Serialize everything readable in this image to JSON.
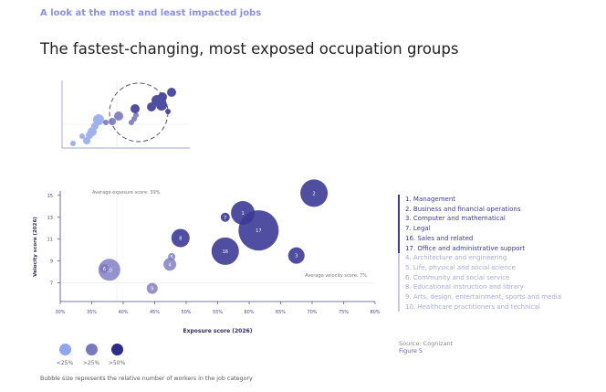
{
  "kicker": "A look at the most and least impacted jobs",
  "title": "The fastest-changing, most exposed occupation groups",
  "colors": {
    "high": "#3d3b96",
    "mid": "#7b77c0",
    "low": "#8fa5ee",
    "axis": "#4a4a8a"
  },
  "chart_data": {
    "type": "scatter",
    "subtype": "bubble",
    "xlabel": "Exposure  score (2026)",
    "ylabel": "Velocity score (2026)",
    "xlim": [
      30,
      80
    ],
    "ylim": [
      5.3,
      15.4
    ],
    "xticks": [
      "30%",
      "35%",
      "40%",
      "45%",
      "50%",
      "55%",
      "60%",
      "65%",
      "70%",
      "75%",
      "80%"
    ],
    "yticks": [
      "7",
      "9",
      "11",
      "13",
      "15"
    ],
    "reference_lines": {
      "avg_exposure": {
        "value": 39,
        "label": "Average exposure score: 39%"
      },
      "avg_velocity": {
        "value": 7,
        "label": "Average velocity score: 7%"
      }
    },
    "points": [
      {
        "label": "2",
        "x": 70.3,
        "y": 15.2,
        "size": 15,
        "group": "high"
      },
      {
        "label": "17",
        "x": 61.5,
        "y": 11.8,
        "size": 22,
        "group": "high"
      },
      {
        "label": "1",
        "x": 59.0,
        "y": 13.4,
        "size": 13,
        "group": "high"
      },
      {
        "label": "7",
        "x": 56.2,
        "y": 13.0,
        "size": 5,
        "group": "high"
      },
      {
        "label": "8",
        "x": 49.1,
        "y": 11.1,
        "size": 10,
        "group": "high"
      },
      {
        "label": "16",
        "x": 56.2,
        "y": 9.9,
        "size": 15,
        "group": "high"
      },
      {
        "label": "3",
        "x": 67.5,
        "y": 9.5,
        "size": 9,
        "group": "high"
      },
      {
        "label": "5",
        "x": 47.7,
        "y": 9.4,
        "size": 4,
        "group": "mid"
      },
      {
        "label": "4",
        "x": 47.4,
        "y": 8.7,
        "size": 7,
        "group": "mid"
      },
      {
        "label": "10",
        "x": 37.8,
        "y": 8.2,
        "size": 12,
        "group": "mid"
      },
      {
        "label": "6",
        "x": 37.0,
        "y": 8.3,
        "size": 5,
        "group": "mid"
      },
      {
        "label": "9",
        "x": 44.6,
        "y": 6.5,
        "size": 6,
        "group": "mid"
      }
    ],
    "legend": [
      {
        "label": "<25%",
        "color": "#8fa5ee"
      },
      {
        "label": ">25%",
        "color": "#7b77c0"
      },
      {
        "label": ">50%",
        "color": "#2e2c8a"
      }
    ]
  },
  "categories_bold": [
    "1. Management",
    "2. Business and financial operations",
    "3. Computer and mathematical",
    "7. Legal",
    "16. Sales and related",
    "17. Office and administrative support"
  ],
  "categories_light": [
    "4. Architecture and engineering",
    "5. Life, physical and social science",
    "6. Community and social service",
    "8. Educational instruction and library",
    "9. Arts, design, entertainment, sports and media",
    "10. Healthcare practitioners and technical"
  ],
  "source": "Source: Cognizant",
  "figure": "Figure 5",
  "note": "Bubble size represents the relative number of workers in the job category"
}
